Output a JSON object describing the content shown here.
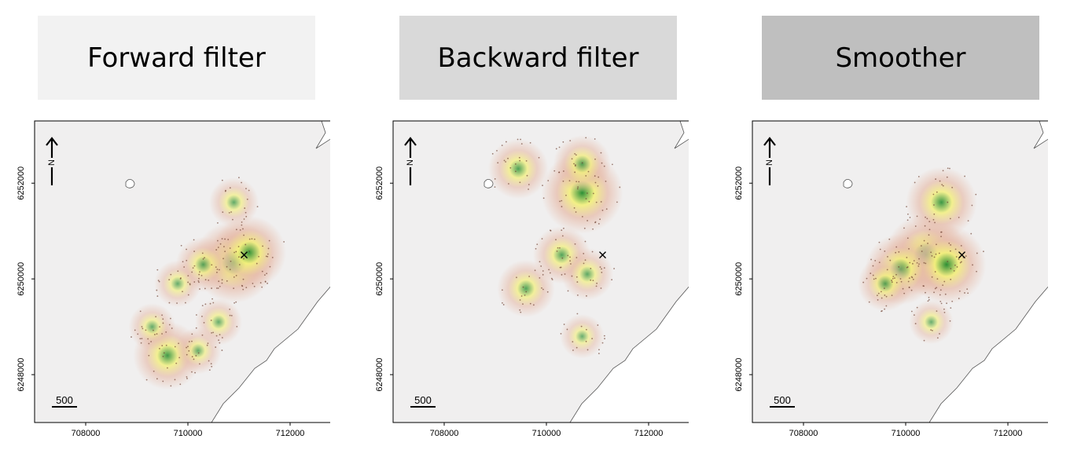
{
  "headers": [
    {
      "label": "Forward filter",
      "bg": "#f2f2f2"
    },
    {
      "label": "Backward filter",
      "bg": "#d9d9d9"
    },
    {
      "label": "Smoother",
      "bg": "#bfbfbf"
    }
  ],
  "colors": {
    "background": "#f0efef",
    "land": "#ffffff",
    "coast": "#555555",
    "density_low": "#e6b9a6",
    "density_mid": "#f3f07a",
    "density_high": "#1f8a2b",
    "points": "#6b3d2e",
    "marker": "#000000"
  },
  "north_label": "N",
  "scale_label": "500",
  "chart_data": [
    {
      "type": "heatmap",
      "title": "Forward filter",
      "xlabel": "",
      "ylabel": "",
      "xlim": [
        707000,
        713000
      ],
      "ylim": [
        6247000,
        6253300
      ],
      "x_ticks": [
        708000,
        710000,
        712000
      ],
      "x_tick_labels": [
        "708000",
        "710000",
        "712000"
      ],
      "y_ticks": [
        6248000,
        6250000,
        6252000
      ],
      "y_tick_labels": [
        "6248000",
        "6250000",
        "6252000"
      ],
      "marker_x": [
        711100,
        6250500
      ],
      "hotspots": [
        {
          "x": 710900,
          "y": 6250350,
          "intensity": 1.0
        },
        {
          "x": 711200,
          "y": 6250550,
          "intensity": 0.85
        },
        {
          "x": 710300,
          "y": 6250300,
          "intensity": 0.5
        },
        {
          "x": 709600,
          "y": 6248400,
          "intensity": 0.75
        },
        {
          "x": 710900,
          "y": 6251600,
          "intensity": 0.4
        },
        {
          "x": 709800,
          "y": 6249900,
          "intensity": 0.35
        },
        {
          "x": 709300,
          "y": 6249000,
          "intensity": 0.35
        },
        {
          "x": 710600,
          "y": 6249100,
          "intensity": 0.35
        },
        {
          "x": 710200,
          "y": 6248500,
          "intensity": 0.35
        }
      ]
    },
    {
      "type": "heatmap",
      "title": "Backward filter",
      "xlabel": "",
      "ylabel": "",
      "xlim": [
        707000,
        713000
      ],
      "ylim": [
        6247000,
        6253300
      ],
      "x_ticks": [
        708000,
        710000,
        712000
      ],
      "x_tick_labels": [
        "708000",
        "710000",
        "712000"
      ],
      "y_ticks": [
        6248000,
        6250000,
        6252000
      ],
      "y_tick_labels": [
        "6248000",
        "6250000",
        "6252000"
      ],
      "marker_x": [
        711100,
        6250500
      ],
      "hotspots": [
        {
          "x": 710700,
          "y": 6251800,
          "intensity": 1.0
        },
        {
          "x": 710700,
          "y": 6252400,
          "intensity": 0.55
        },
        {
          "x": 709450,
          "y": 6252300,
          "intensity": 0.6
        },
        {
          "x": 710300,
          "y": 6250500,
          "intensity": 0.55
        },
        {
          "x": 709600,
          "y": 6249800,
          "intensity": 0.55
        },
        {
          "x": 710800,
          "y": 6250100,
          "intensity": 0.45
        },
        {
          "x": 710700,
          "y": 6248800,
          "intensity": 0.3
        }
      ]
    },
    {
      "type": "heatmap",
      "title": "Smoother",
      "xlabel": "",
      "ylabel": "",
      "xlim": [
        707000,
        713000
      ],
      "ylim": [
        6247000,
        6253300
      ],
      "x_ticks": [
        708000,
        710000,
        712000
      ],
      "x_tick_labels": [
        "708000",
        "710000",
        "712000"
      ],
      "y_ticks": [
        6248000,
        6250000,
        6252000
      ],
      "y_tick_labels": [
        "6248000",
        "6250000",
        "6252000"
      ],
      "marker_x": [
        711100,
        6250500
      ],
      "hotspots": [
        {
          "x": 710400,
          "y": 6250500,
          "intensity": 1.0
        },
        {
          "x": 710800,
          "y": 6250300,
          "intensity": 0.95
        },
        {
          "x": 709900,
          "y": 6250200,
          "intensity": 0.8
        },
        {
          "x": 710700,
          "y": 6251600,
          "intensity": 0.8
        },
        {
          "x": 709600,
          "y": 6249900,
          "intensity": 0.5
        },
        {
          "x": 710500,
          "y": 6249100,
          "intensity": 0.3
        }
      ]
    }
  ]
}
